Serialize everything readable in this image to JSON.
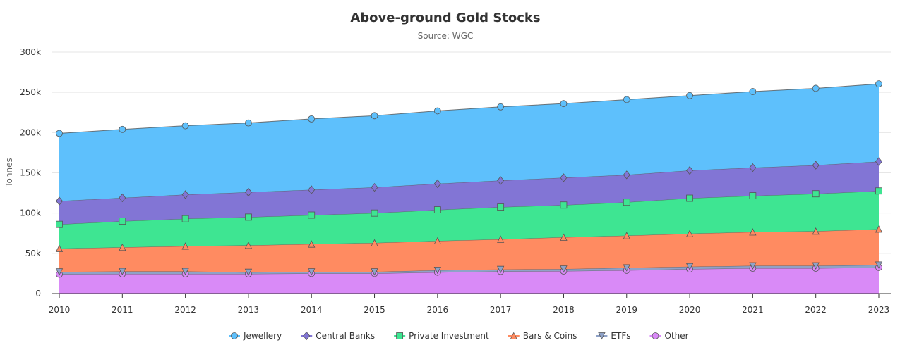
{
  "chart_data": {
    "type": "area",
    "stacked": true,
    "title": "Above-ground Gold Stocks",
    "subtitle": "Source: WGC",
    "xlabel": "",
    "ylabel": "Tonnes",
    "ylim": [
      0,
      300000
    ],
    "y_ticks": [
      {
        "value": 0,
        "label": "0"
      },
      {
        "value": 50000,
        "label": "50k"
      },
      {
        "value": 100000,
        "label": "100k"
      },
      {
        "value": 150000,
        "label": "150k"
      },
      {
        "value": 200000,
        "label": "200k"
      },
      {
        "value": 250000,
        "label": "250k"
      },
      {
        "value": 300000,
        "label": "300k"
      }
    ],
    "grid": true,
    "legend_position": "bottom-center",
    "x": [
      "2010",
      "2011",
      "2012",
      "2013",
      "2014",
      "2015",
      "2016",
      "2017",
      "2018",
      "2019",
      "2020",
      "2021",
      "2022",
      "2023"
    ],
    "series": [
      {
        "name": "Other",
        "color": "#d98af7",
        "marker": "circle",
        "values": [
          24000,
          24500,
          24500,
          24500,
          25000,
          25000,
          26500,
          27500,
          28000,
          29000,
          30500,
          31500,
          31500,
          32500
        ]
      },
      {
        "name": "ETFs",
        "color": "#8fa2c7",
        "marker": "triangle-down",
        "values": [
          3000,
          3000,
          3000,
          2000,
          2000,
          2000,
          2500,
          2500,
          2500,
          3000,
          3000,
          3000,
          3000,
          3000
        ]
      },
      {
        "name": "Bars & Coins",
        "color": "#ff8b61",
        "marker": "triangle",
        "values": [
          29000,
          30000,
          31500,
          33500,
          34500,
          36000,
          36500,
          37500,
          39500,
          40000,
          41000,
          42000,
          43000,
          44500
        ]
      },
      {
        "name": "Private Investment",
        "color": "#3ee592",
        "marker": "square",
        "values": [
          30000,
          32500,
          34000,
          35000,
          36000,
          37000,
          38500,
          40000,
          40000,
          41500,
          44000,
          45000,
          46500,
          47500
        ]
      },
      {
        "name": "Central Banks",
        "color": "#8275d5",
        "marker": "diamond",
        "values": [
          29000,
          29000,
          30000,
          31000,
          31500,
          32000,
          32500,
          33000,
          34000,
          34000,
          34500,
          35000,
          35500,
          36500
        ]
      },
      {
        "name": "Jewellery",
        "color": "#5ec0fc",
        "marker": "circle",
        "values": [
          84000,
          85000,
          85500,
          86000,
          88000,
          89000,
          90500,
          91500,
          92000,
          93500,
          93000,
          94500,
          95500,
          96500
        ]
      }
    ],
    "legend_order": [
      "Jewellery",
      "Central Banks",
      "Private Investment",
      "Bars & Coins",
      "ETFs",
      "Other"
    ]
  }
}
